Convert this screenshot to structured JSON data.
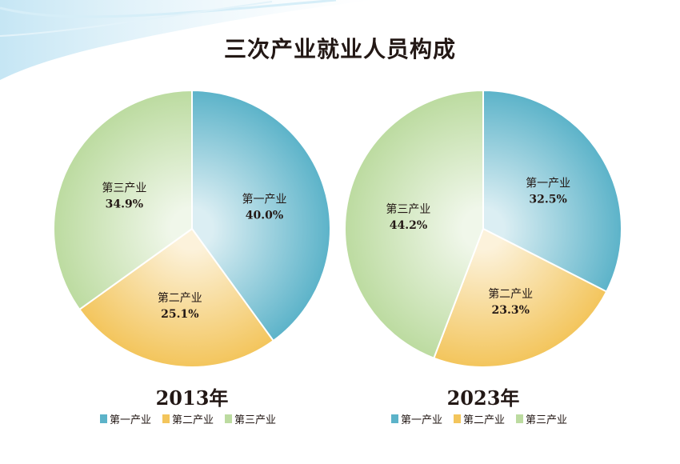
{
  "title": "三次产业就业人员构成",
  "colors": {
    "primary": "#5cb3c9",
    "secondary": "#f3c55c",
    "tertiary": "#bcdba0"
  },
  "chart_data": [
    {
      "type": "pie",
      "year_label": "2013年",
      "slices": [
        {
          "label": "第一产业",
          "value": 40.0,
          "value_text": "40.0%",
          "color": "#5cb3c9"
        },
        {
          "label": "第二产业",
          "value": 25.1,
          "value_text": "25.1%",
          "color": "#f3c55c"
        },
        {
          "label": "第三产业",
          "value": 34.9,
          "value_text": "34.9%",
          "color": "#bcdba0"
        }
      ],
      "legend": [
        "第一产业",
        "第二产业",
        "第三产业"
      ],
      "legend_position": "bottom"
    },
    {
      "type": "pie",
      "year_label": "2023年",
      "slices": [
        {
          "label": "第一产业",
          "value": 32.5,
          "value_text": "32.5%",
          "color": "#5cb3c9"
        },
        {
          "label": "第二产业",
          "value": 23.3,
          "value_text": "23.3%",
          "color": "#f3c55c"
        },
        {
          "label": "第三产业",
          "value": 44.2,
          "value_text": "44.2%",
          "color": "#bcdba0"
        }
      ],
      "legend": [
        "第一产业",
        "第二产业",
        "第三产业"
      ],
      "legend_position": "bottom"
    }
  ]
}
